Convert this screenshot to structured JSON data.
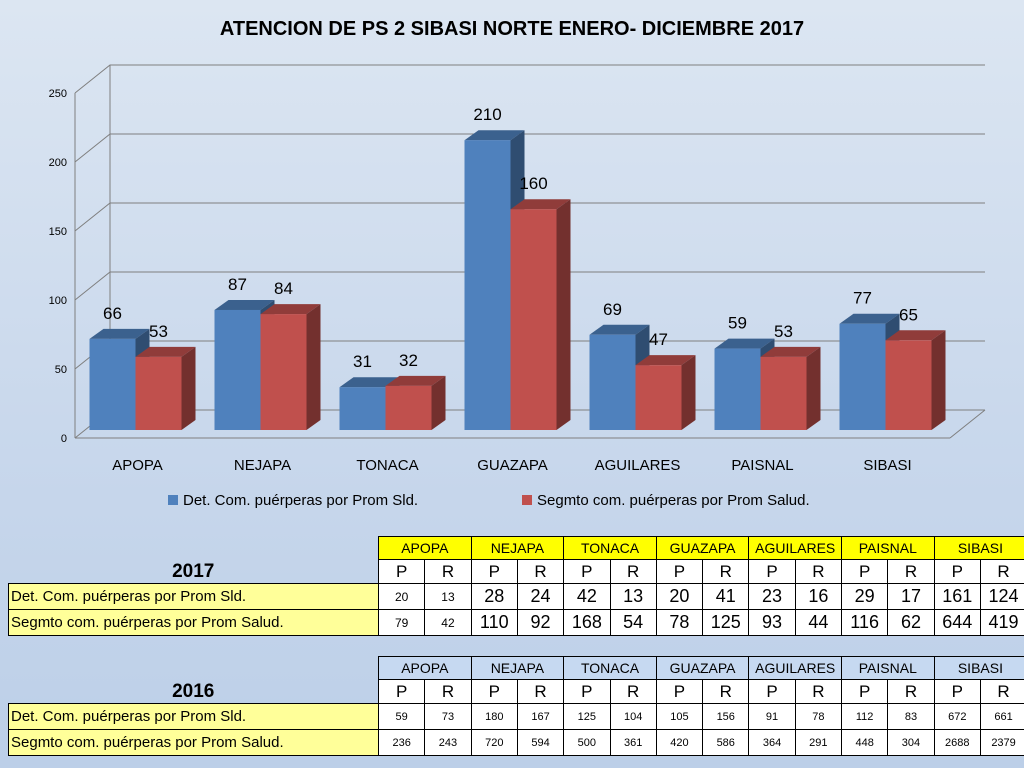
{
  "chart_data": {
    "type": "bar",
    "title": "ATENCION DE PS 2 SIBASI NORTE ENERO- DICIEMBRE 2017",
    "categories": [
      "APOPA",
      "NEJAPA",
      "TONACA",
      "GUAZAPA",
      "AGUILARES",
      "PAISNAL",
      "SIBASI"
    ],
    "series": [
      {
        "name": "Det.  Com. puérperas por Prom  Sld.",
        "values": [
          66,
          87,
          31,
          210,
          69,
          59,
          77
        ],
        "color": "#4f81bd"
      },
      {
        "name": "Segmto com. puérperas por Prom Salud.",
        "values": [
          53,
          84,
          32,
          160,
          47,
          53,
          65
        ],
        "color": "#c0504d"
      }
    ],
    "ylim": [
      0,
      250
    ],
    "yticks": [
      "0",
      "50",
      "100",
      "150",
      "200",
      "250"
    ],
    "grid": true,
    "legend": "bottom"
  },
  "table_2017": {
    "year": "2017",
    "columns": [
      "APOPA",
      "NEJAPA",
      "TONACA",
      "GUAZAPA",
      "AGUILARES",
      "PAISNAL",
      "SIBASI"
    ],
    "sub": [
      "P",
      "R",
      "P",
      "R",
      "P",
      "R",
      "P",
      "R",
      "P",
      "R",
      "P",
      "R",
      "P",
      "R"
    ],
    "rows": [
      {
        "label": "Det.  Com. puérperas por Prom  Sld.",
        "values": [
          "20",
          "13",
          "28",
          "24",
          "42",
          "13",
          "20",
          "41",
          "23",
          "16",
          "29",
          "17",
          "161",
          "124"
        ]
      },
      {
        "label": "Segmto com. puérperas por Prom Salud.",
        "values": [
          "79",
          "42",
          "110",
          "92",
          "168",
          "54",
          "78",
          "125",
          "93",
          "44",
          "116",
          "62",
          "644",
          "419"
        ]
      }
    ]
  },
  "table_2016": {
    "year": "2016",
    "columns": [
      "APOPA",
      "NEJAPA",
      "TONACA",
      "GUAZAPA",
      "AGUILARES",
      "PAISNAL",
      "SIBASI"
    ],
    "sub": [
      "P",
      "R",
      "P",
      "R",
      "P",
      "R",
      "P",
      "R",
      "P",
      "R",
      "P",
      "R",
      "P",
      "R"
    ],
    "rows": [
      {
        "label": "Det.  Com. puérperas por Prom  Sld.",
        "values": [
          "59",
          "73",
          "180",
          "167",
          "125",
          "104",
          "105",
          "156",
          "91",
          "78",
          "112",
          "83",
          "672",
          "661"
        ]
      },
      {
        "label": "Segmto com. puérperas por Prom Salud.",
        "values": [
          "236",
          "243",
          "720",
          "594",
          "500",
          "361",
          "420",
          "586",
          "364",
          "291",
          "448",
          "304",
          "2688",
          "2379"
        ]
      }
    ]
  }
}
